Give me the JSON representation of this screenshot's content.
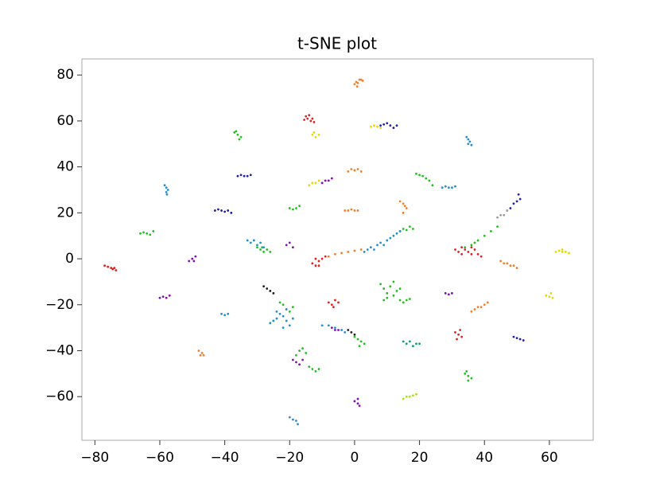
{
  "chart_data": {
    "type": "scatter",
    "title": "t-SNE plot",
    "xlim": [
      -84,
      73.5
    ],
    "ylim": [
      -79,
      87
    ],
    "xticks": [
      {
        "value": -80,
        "label": "−80"
      },
      {
        "value": -60,
        "label": "−60"
      },
      {
        "value": -40,
        "label": "−40"
      },
      {
        "value": -20,
        "label": "−20"
      },
      0,
      20,
      40,
      60
    ],
    "yticks": [
      {
        "value": -60,
        "label": "−60"
      },
      {
        "value": -40,
        "label": "−40"
      },
      {
        "value": -20,
        "label": "−20"
      },
      0,
      20,
      40,
      60,
      80
    ],
    "grid": false,
    "series": [
      {
        "color": "#e02020",
        "x": [
          -15,
          -14.5,
          -14,
          -13.5,
          -13,
          -15.5,
          -12.5,
          -77,
          -76,
          -75,
          -74.5,
          -74,
          -73.5,
          -13,
          -12,
          -11,
          -11,
          -10,
          -9,
          -12,
          31,
          32,
          33,
          34,
          35,
          36,
          37,
          38,
          39,
          33,
          36,
          -8,
          -7,
          -6,
          -5,
          -6.5,
          31,
          32,
          33,
          32.5,
          31.5
        ],
        "y": [
          62,
          61,
          62.5,
          60,
          61,
          60.5,
          59.5,
          -3,
          -3.5,
          -4,
          -4.5,
          -4,
          -5,
          -2,
          -3,
          -1,
          -3,
          0,
          1,
          0,
          4,
          3,
          2,
          4,
          3,
          2,
          4,
          2,
          1,
          5,
          5,
          -19,
          -20,
          -18,
          -19,
          -21,
          -32,
          -33,
          -34,
          -31,
          -35
        ]
      },
      {
        "color": "#f08030",
        "x": [
          0,
          0.5,
          1,
          1.5,
          2,
          2.5,
          0.8,
          -2,
          -1,
          0,
          1,
          2,
          -8,
          -6,
          -4,
          -2,
          0,
          2,
          -3,
          -2,
          -1,
          0,
          1,
          14,
          15,
          15.5,
          16,
          15,
          45,
          46,
          47,
          48,
          49,
          50,
          36,
          37,
          38,
          39,
          40,
          41,
          -48,
          -47,
          -46.5,
          -47.5
        ],
        "y": [
          76,
          77,
          76.5,
          78,
          78,
          77.5,
          75,
          38,
          39,
          38.5,
          39,
          38,
          1,
          2,
          2.5,
          3,
          3.5,
          4,
          21,
          21,
          21.5,
          21,
          21,
          25,
          24,
          23,
          22,
          20,
          -1,
          -2,
          -2,
          -3,
          -3,
          -4,
          -23,
          -22,
          -21,
          -21,
          -20,
          -19,
          -40,
          -41,
          -42,
          -42
        ]
      },
      {
        "color": "#e8d800",
        "x": [
          -13,
          -12,
          -11,
          -12.5,
          5,
          6,
          7,
          8,
          -14,
          -13,
          -12,
          -11,
          62,
          63,
          64,
          65,
          66,
          64,
          59,
          60,
          61,
          60.5
        ],
        "y": [
          54,
          53,
          54,
          55,
          57.5,
          58,
          57.5,
          57,
          32,
          33,
          33,
          34,
          3,
          3.5,
          3,
          3,
          2.5,
          4,
          -16,
          -16.5,
          -17,
          -15
        ]
      },
      {
        "color": "#a8e020",
        "x": [
          15,
          16,
          17,
          18,
          19
        ],
        "y": [
          -61,
          -60,
          -60,
          -59.5,
          -59
        ]
      },
      {
        "color": "#20c020",
        "x": [
          -37,
          -36,
          -35,
          -35.5,
          -36.5,
          -66,
          -65,
          -64,
          -63,
          -62,
          -20,
          -19,
          -18,
          -17,
          19,
          20,
          21,
          22,
          23,
          24,
          -30,
          -29,
          -28,
          -27,
          -26,
          -28.5,
          14,
          15,
          16,
          17,
          18,
          34,
          36,
          37,
          38,
          40,
          42,
          44,
          8,
          9,
          10,
          11,
          12,
          13,
          14,
          10,
          12,
          9,
          14,
          15,
          16,
          17,
          -23,
          -22,
          -21,
          -20,
          -19,
          0,
          1,
          2,
          3,
          1.5,
          -18,
          -17,
          -16,
          -15,
          -14,
          -13,
          -12,
          -11,
          34,
          35,
          36,
          35,
          34.5
        ],
        "y": [
          55,
          54,
          53,
          52,
          55.5,
          11,
          11.5,
          11,
          10.5,
          12,
          22,
          21.5,
          22,
          23,
          37,
          36.5,
          36,
          35,
          34,
          32,
          5,
          4,
          3,
          4,
          3,
          5,
          12,
          13,
          12.5,
          14,
          13,
          5,
          6,
          7,
          8,
          10,
          12,
          14,
          -11,
          -13,
          -15,
          -12,
          -16,
          -14,
          -13,
          -17,
          -10,
          -18,
          -18,
          -19,
          -18,
          -17.5,
          -19,
          -20,
          -22,
          -23,
          -21,
          -34,
          -35,
          -36,
          -37,
          -38,
          -42,
          -40,
          -39,
          -41,
          -47,
          -48,
          -49,
          -48,
          -50,
          -51,
          -52,
          -53,
          -49
        ]
      },
      {
        "color": "#10a070",
        "x": [
          15,
          16,
          17,
          18,
          19,
          20
        ],
        "y": [
          -36,
          -37,
          -36,
          -38,
          -37,
          -37
        ]
      },
      {
        "color": "#2090d0",
        "x": [
          34.5,
          35,
          35.5,
          35,
          36,
          -58.5,
          -58,
          -57.5,
          -58,
          -57.8,
          -33,
          -32,
          -31,
          -30,
          -29,
          -28,
          3,
          4,
          5,
          6,
          7,
          8,
          9,
          10,
          11,
          12,
          13,
          14,
          27,
          28,
          29,
          30,
          31,
          -41,
          -40,
          -39,
          -26,
          -25,
          -24,
          -23,
          -22,
          -21,
          -20,
          -19,
          -24,
          -22,
          -21,
          -10,
          -8,
          -6,
          -4,
          -3,
          -20,
          -19,
          -18,
          -17.5
        ],
        "y": [
          53,
          52,
          51,
          50,
          49.5,
          32,
          31,
          30,
          29,
          28,
          8,
          7,
          8,
          6,
          7,
          5,
          3,
          4,
          5,
          4,
          6,
          7,
          6,
          8,
          9,
          10,
          11,
          12,
          31,
          31.5,
          31,
          31,
          31.5,
          -24,
          -24.5,
          -24,
          -28,
          -27,
          -26,
          -24,
          -25,
          -27,
          -29,
          -26,
          -23,
          -30,
          -22,
          -29,
          -29,
          -30,
          -31,
          -32,
          -69,
          -70,
          -70.5,
          -72
        ]
      },
      {
        "color": "#2020b0",
        "x": [
          8,
          9,
          10,
          11,
          12,
          13,
          -36,
          -35,
          -34,
          -33,
          -32,
          -43,
          -42,
          -41,
          -40,
          -39,
          -38,
          48,
          49,
          50,
          51,
          50.5,
          49,
          50,
          51,
          52
        ],
        "y": [
          58,
          58.5,
          59,
          58,
          57,
          58,
          36,
          36.5,
          36,
          36,
          36.5,
          21,
          21.5,
          21,
          20.5,
          21,
          20,
          22,
          24,
          25,
          26,
          28,
          -34,
          -34.5,
          -35,
          -35.5
        ]
      },
      {
        "color": "#8010b0",
        "x": [
          -10,
          -9,
          -8,
          -7,
          -51,
          -50,
          -49.5,
          -49,
          -60,
          -59,
          -58,
          -57,
          -21,
          -20,
          -19,
          28,
          29,
          30,
          -19,
          -18,
          -17,
          -16,
          0,
          1,
          1.5,
          1,
          -7,
          -6,
          -5
        ],
        "y": [
          33,
          34,
          34,
          35,
          -1,
          0,
          -1,
          1,
          -17,
          -16.5,
          -17,
          -16,
          6,
          7,
          5,
          -15,
          -15.5,
          -15,
          -44,
          -45,
          -46,
          -44,
          -62,
          -63,
          -64,
          -61,
          -30,
          -31,
          -31
        ]
      },
      {
        "color": "#202020",
        "x": [
          -28,
          -27,
          -26,
          -25,
          -2,
          -1,
          0
        ],
        "y": [
          -12,
          -13,
          -14,
          -15,
          -31,
          -32,
          -33
        ]
      },
      {
        "color": "#999999",
        "x": [
          44,
          45,
          46,
          47
        ],
        "y": [
          18,
          19,
          19,
          21
        ]
      }
    ]
  }
}
